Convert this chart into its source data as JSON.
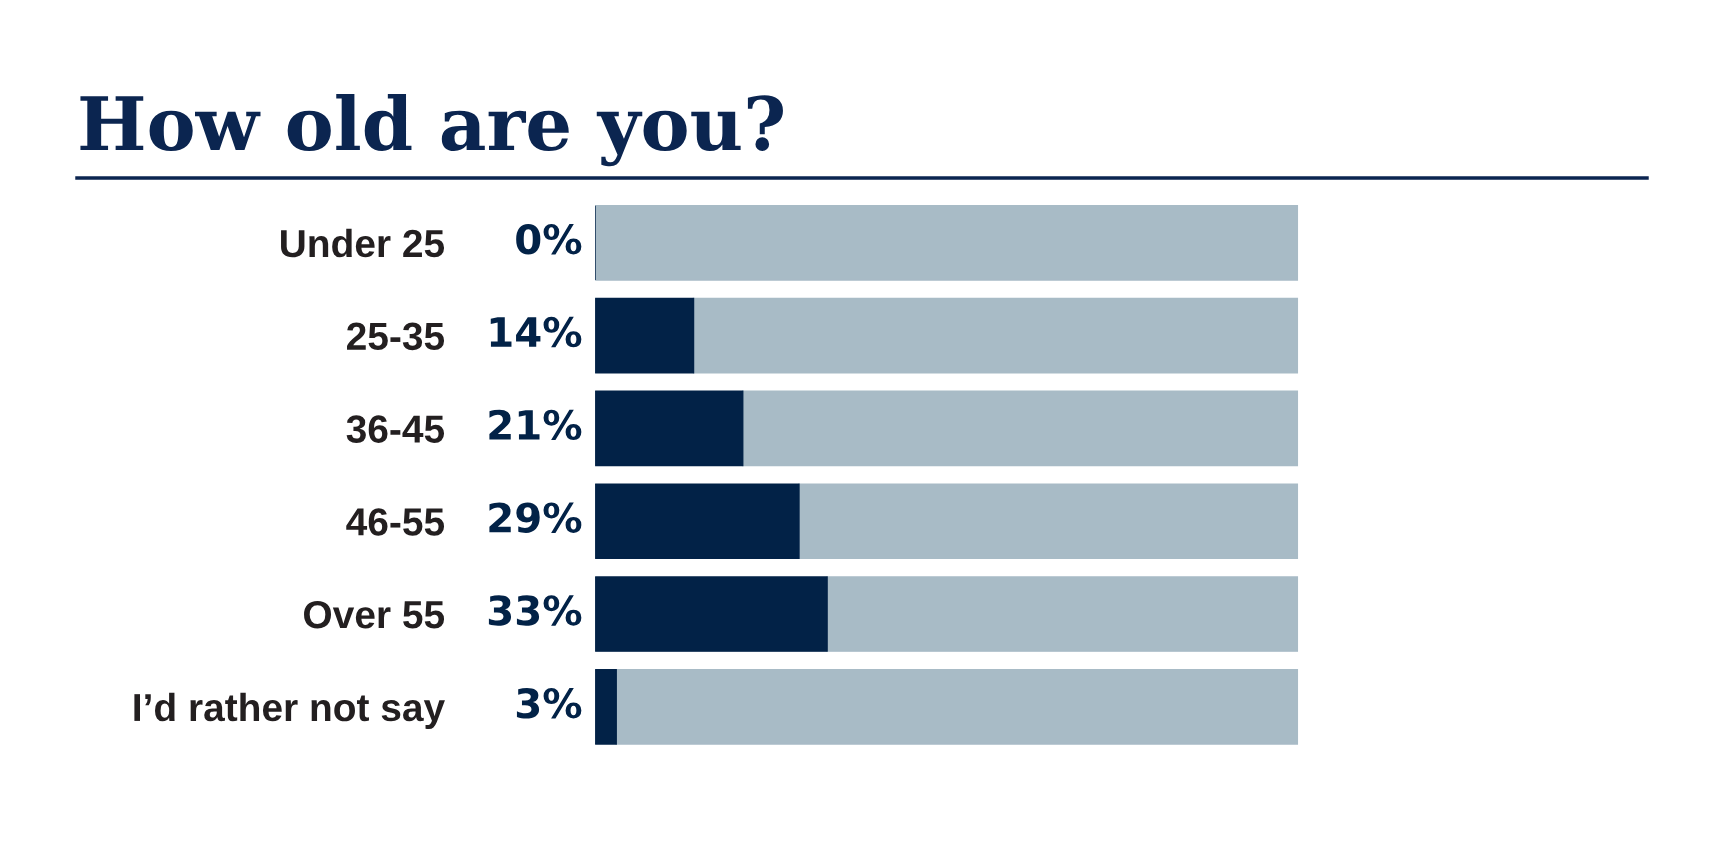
{
  "chart_data": {
    "type": "bar",
    "orientation": "horizontal",
    "stacked": true,
    "title": "How old are you?",
    "categories": [
      "Under 25",
      "25-35",
      "36-45",
      "46-55",
      "Over 55",
      "I’d rather not say"
    ],
    "series": [
      {
        "color": "#022247",
        "values": [
          0,
          14,
          21,
          29,
          33,
          3
        ],
        "value_labels": [
          "0%",
          "14%",
          "21%",
          "29%",
          "33%",
          "3%"
        ]
      },
      {
        "color": "#a8bbc6",
        "values": [
          100,
          86,
          79,
          71,
          67,
          97
        ]
      }
    ],
    "tick_labels": "y"
  }
}
